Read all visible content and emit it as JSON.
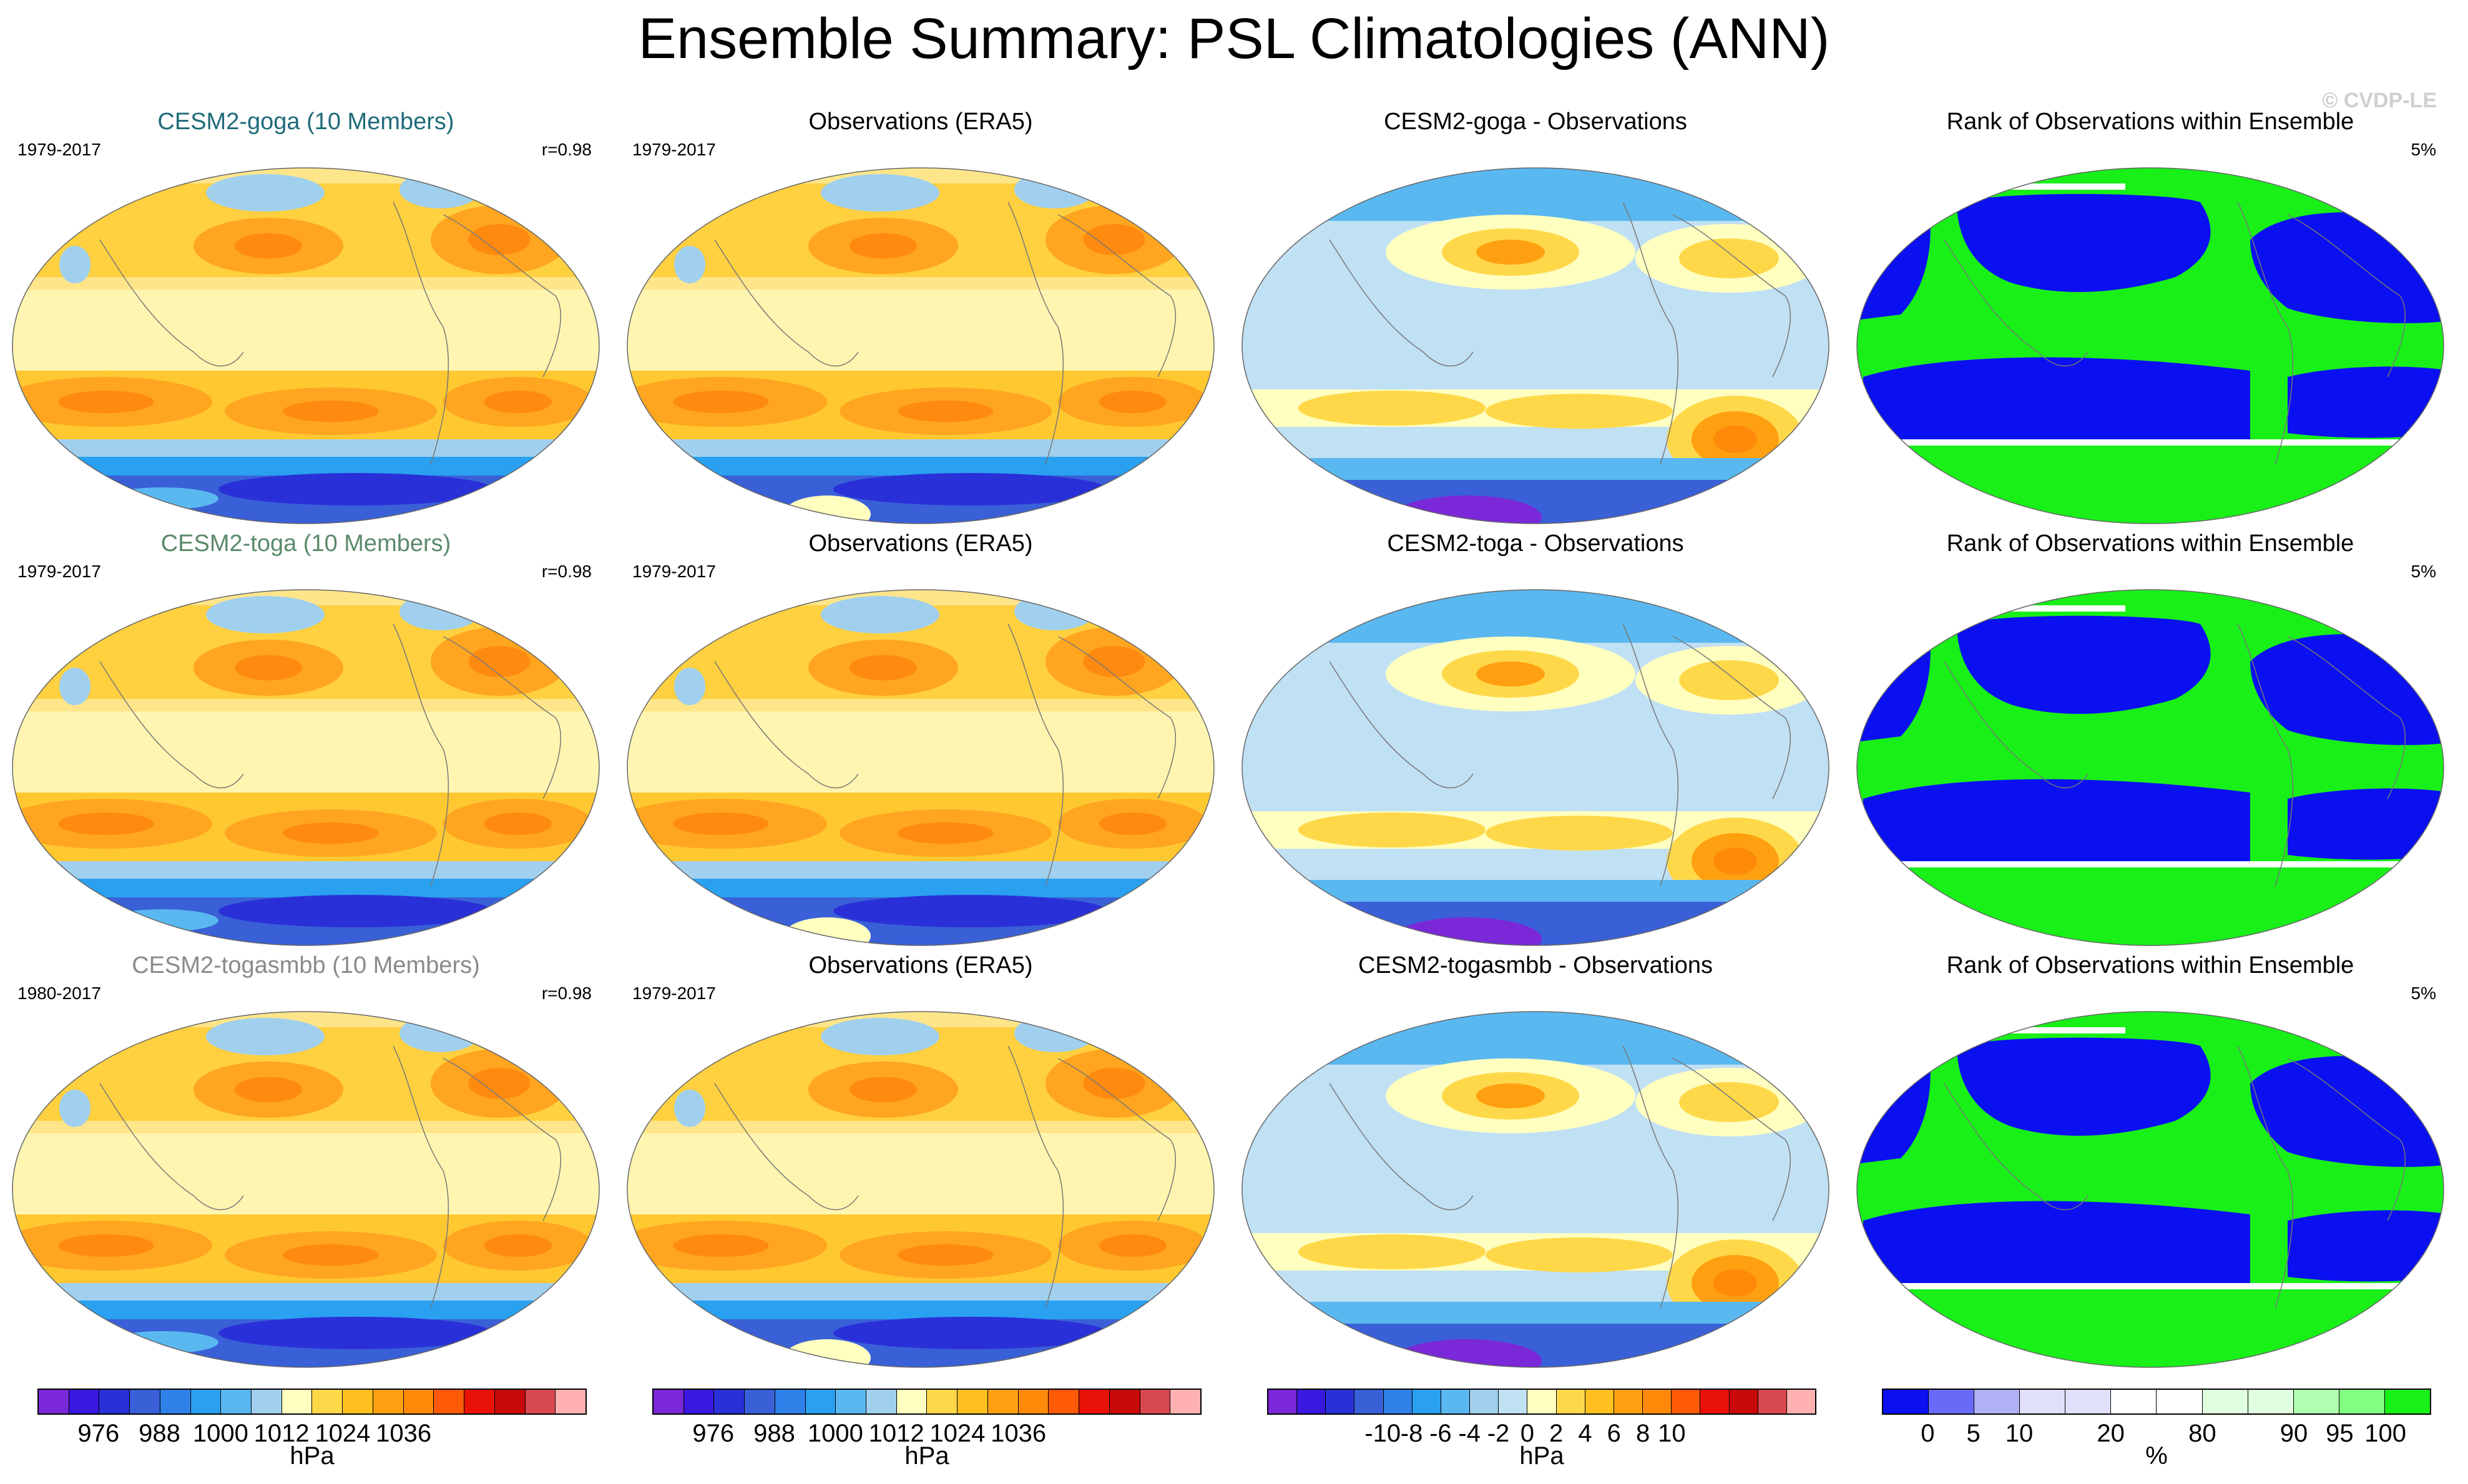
{
  "title": "Ensemble Summary: PSL Climatologies (ANN)",
  "copyright": "© CVDP-LE",
  "rows": [
    {
      "ensemble": {
        "title": "CESM2-goga (10 Members)",
        "title_color": "#1f6b7a",
        "years": "1979-2017",
        "stat": "r=0.98"
      },
      "obs": {
        "title": "Observations (ERA5)",
        "years": "1979-2017"
      },
      "diff": {
        "title": "CESM2-goga - Observations"
      },
      "rank": {
        "title": "Rank of Observations within Ensemble",
        "stat": "5%"
      }
    },
    {
      "ensemble": {
        "title": "CESM2-toga (10 Members)",
        "title_color": "#5a8a6a",
        "years": "1979-2017",
        "stat": "r=0.98"
      },
      "obs": {
        "title": "Observations (ERA5)",
        "years": "1979-2017"
      },
      "diff": {
        "title": "CESM2-toga - Observations"
      },
      "rank": {
        "title": "Rank of Observations within Ensemble",
        "stat": "5%"
      }
    },
    {
      "ensemble": {
        "title": "CESM2-togasmbb (10 Members)",
        "title_color": "#8a8a8a",
        "years": "1980-2017",
        "stat": "r=0.98"
      },
      "obs": {
        "title": "Observations (ERA5)",
        "years": "1979-2017"
      },
      "diff": {
        "title": "CESM2-togasmbb - Observations"
      },
      "rank": {
        "title": "Rank of Observations within Ensemble",
        "stat": "5%"
      }
    }
  ],
  "colorbars": [
    {
      "name": "psl",
      "unit": "hPa",
      "colors": [
        "#7a28d8",
        "#3a18e0",
        "#2a30d8",
        "#3a60d8",
        "#2f80e8",
        "#2aa0f0",
        "#5ab8f0",
        "#a0d0ee",
        "#ffffc0",
        "#ffd84a",
        "#ffc020",
        "#ffa010",
        "#ff8a0a",
        "#ff5a08",
        "#e81208",
        "#c80a0a",
        "#d84850",
        "#ffb0b0"
      ],
      "ticks": [
        "976",
        "988",
        "1000",
        "1012",
        "1024",
        "1036"
      ]
    },
    {
      "name": "psl-obs",
      "unit": "hPa",
      "colors": [
        "#7a28d8",
        "#3a18e0",
        "#2a30d8",
        "#3a60d8",
        "#2f80e8",
        "#2aa0f0",
        "#5ab8f0",
        "#a0d0ee",
        "#ffffc0",
        "#ffd84a",
        "#ffc020",
        "#ffa010",
        "#ff8a0a",
        "#ff5a08",
        "#e81208",
        "#c80a0a",
        "#d84850",
        "#ffb0b0"
      ],
      "ticks": [
        "976",
        "988",
        "1000",
        "1012",
        "1024",
        "1036"
      ]
    },
    {
      "name": "diff",
      "unit": "hPa",
      "colors": [
        "#7a28d8",
        "#3a18e0",
        "#2a30d8",
        "#3a60d8",
        "#2f80e8",
        "#2aa0f0",
        "#5ab8f0",
        "#a0d0ee",
        "#c0e0f4",
        "#ffffc0",
        "#ffd84a",
        "#ffc020",
        "#ffa010",
        "#ff8a0a",
        "#ff5a08",
        "#e81208",
        "#c80a0a",
        "#d84850",
        "#ffb0b0"
      ],
      "ticks": [
        "-10",
        "-8",
        "-6",
        "-4",
        "-2",
        "0",
        "2",
        "4",
        "6",
        "8",
        "10"
      ]
    },
    {
      "name": "rank",
      "unit": "%",
      "colors": [
        "#0a10f0",
        "#6a6af8",
        "#b0b0f4",
        "#e0e0fa",
        "#e0e0fa",
        "#ffffff",
        "#ffffff",
        "#e0ffe0",
        "#e0ffe0",
        "#b0ffb0",
        "#80ff80",
        "#18f018"
      ],
      "ticks": [
        "0",
        "5",
        "10",
        "20",
        "80",
        "90",
        "95",
        "100"
      ]
    }
  ]
}
